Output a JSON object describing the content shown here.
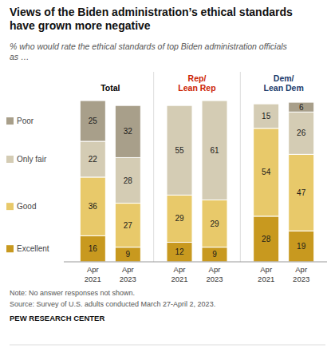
{
  "chart_data": {
    "type": "bar",
    "stacked": true,
    "data_labels": true,
    "tick_labels": "x",
    "title": "Views of the Biden administration’s ethical standards\nhave grown more negative",
    "subtitle": "% who would rate the ethical standards of top Biden administration officials\nas …",
    "notes": [
      "Note: No answer responses not shown.",
      "Source: Survey of U.S. adults conducted March 27-April 2, 2023.",
      "PEW RESEARCH CENTER"
    ],
    "groups": [
      {
        "label": "Total",
        "color": "#000000"
      },
      {
        "label": "Rep/\nLean Rep",
        "color": "#cc2200"
      },
      {
        "label": "Dem/\nLean Dem",
        "color": "#1a3a6b"
      }
    ],
    "categories": [
      "Apr\n2021",
      "Apr\n2023",
      "Apr\n2021",
      "Apr\n2023",
      "Apr\n2021",
      "Apr\n2023"
    ],
    "series": [
      {
        "name": "Excellent",
        "color": "#c8991f",
        "values": [
          16,
          9,
          12,
          9,
          28,
          19
        ]
      },
      {
        "name": "Good",
        "color": "#e8c96a",
        "values": [
          36,
          27,
          29,
          29,
          54,
          47
        ]
      },
      {
        "name": "Only fair",
        "color": "#d4ccb4",
        "values": [
          22,
          28,
          55,
          61,
          15,
          26
        ]
      },
      {
        "name": "Poor",
        "color": "#a89f8a",
        "values": [
          25,
          32,
          0,
          0,
          0,
          6
        ]
      }
    ],
    "ylim": [
      0,
      100
    ]
  }
}
